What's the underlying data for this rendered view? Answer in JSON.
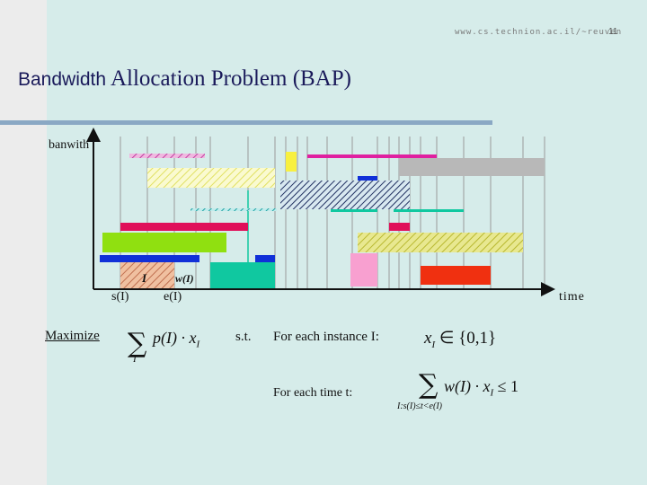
{
  "header": {
    "url": "www.cs.technion.ac.il/~reuven",
    "page_number": "11"
  },
  "title": {
    "part1": "Bandwidth",
    "part2": "Allocation Problem (BAP)"
  },
  "diagram": {
    "y_axis_label": "banwith",
    "x_axis_label": "time",
    "instance_label": "I",
    "weight_label": "w(I)",
    "start_label": "s(I)",
    "end_label": "e(I)"
  },
  "formulation": {
    "objective_word": "Maximize",
    "objective_expr": "p(I) · x",
    "objective_sub": "I",
    "objective_sum_sub": "I",
    "st": "s.t.",
    "constraint1_label": "For each instance I:",
    "constraint1_expr": "x",
    "constraint1_sub": "I",
    "constraint1_rhs": "∈ {0,1}",
    "constraint2_label": "For each time t:",
    "constraint2_expr": "w(I) · x",
    "constraint2_sub": "I",
    "constraint2_rhs": "≤ 1",
    "constraint2_sum_sub": "I:s(I)≤t<e(I)"
  },
  "colors": {
    "background": "#d6ecea",
    "title": "#1a1a5a",
    "rule": "#8aa8c4",
    "grid": "#9a9a9a",
    "blue": "#1030d8",
    "crimson": "#e0105a",
    "magenta": "#e020a0",
    "lime": "#90e010",
    "teal": "#10c8a0",
    "yellow": "#f8f040",
    "gray": "#b8b8b8",
    "pink": "#f8a0d0",
    "red": "#f03010",
    "navyhatch": "#203060",
    "yellowhatch": "#d8d860"
  }
}
